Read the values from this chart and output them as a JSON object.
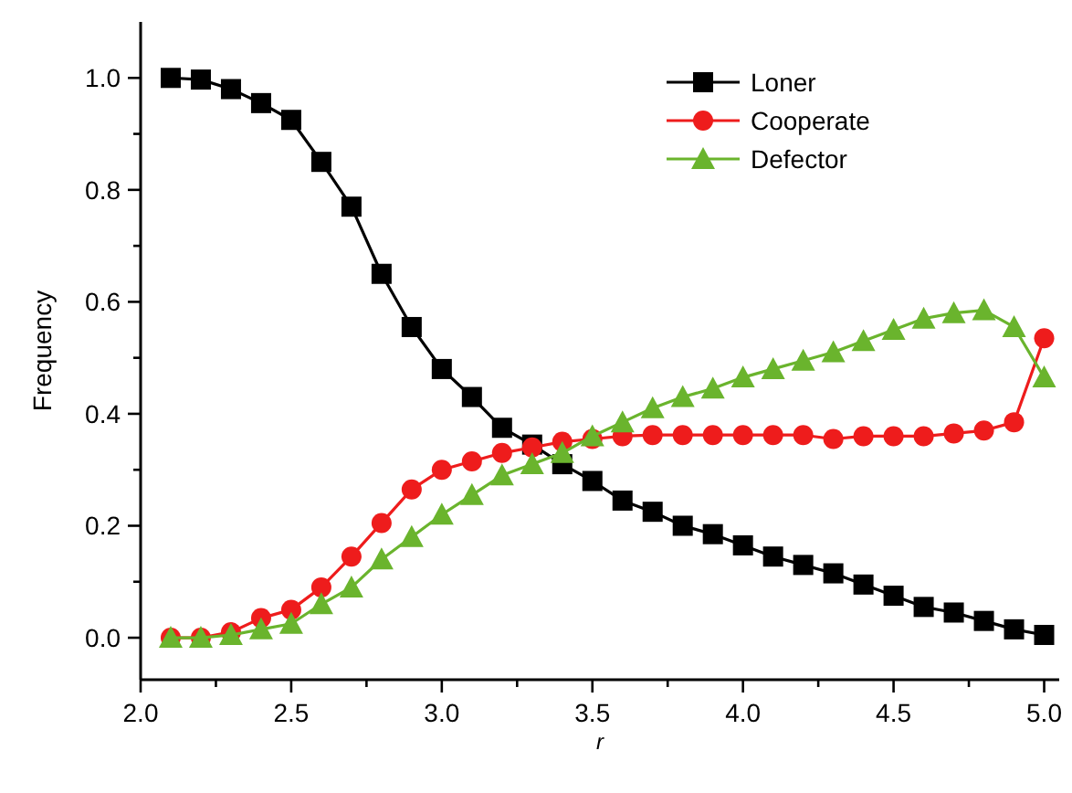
{
  "chart_data": {
    "type": "line",
    "xlabel": "r",
    "ylabel": "Frequency",
    "x": [
      2.1,
      2.2,
      2.3,
      2.4,
      2.5,
      2.6,
      2.7,
      2.8,
      2.9,
      3.0,
      3.1,
      3.2,
      3.3,
      3.4,
      3.5,
      3.6,
      3.7,
      3.8,
      3.9,
      4.0,
      4.1,
      4.2,
      4.3,
      4.4,
      4.5,
      4.6,
      4.7,
      4.8,
      4.9,
      5.0
    ],
    "series": [
      {
        "name": "Loner",
        "color": "#000000",
        "marker": "square",
        "values": [
          1.0,
          0.997,
          0.98,
          0.955,
          0.925,
          0.85,
          0.77,
          0.65,
          0.555,
          0.48,
          0.43,
          0.375,
          0.345,
          0.31,
          0.28,
          0.245,
          0.225,
          0.2,
          0.185,
          0.165,
          0.145,
          0.13,
          0.115,
          0.095,
          0.075,
          0.055,
          0.045,
          0.03,
          0.015,
          0.005
        ]
      },
      {
        "name": "Cooperate",
        "color": "#ee1c1c",
        "marker": "circle",
        "values": [
          0,
          0,
          0.01,
          0.035,
          0.05,
          0.09,
          0.145,
          0.205,
          0.265,
          0.3,
          0.315,
          0.33,
          0.34,
          0.35,
          0.355,
          0.36,
          0.362,
          0.362,
          0.362,
          0.362,
          0.362,
          0.362,
          0.355,
          0.36,
          0.36,
          0.36,
          0.365,
          0.37,
          0.385,
          0.535
        ]
      },
      {
        "name": "Defector",
        "color": "#6ab42d",
        "marker": "triangle",
        "values": [
          0,
          0,
          0.005,
          0.015,
          0.025,
          0.06,
          0.09,
          0.14,
          0.18,
          0.22,
          0.255,
          0.29,
          0.31,
          0.33,
          0.36,
          0.385,
          0.41,
          0.43,
          0.445,
          0.465,
          0.48,
          0.495,
          0.51,
          0.53,
          0.55,
          0.57,
          0.58,
          0.585,
          0.555,
          0.465
        ]
      }
    ],
    "xlim": [
      2.0,
      5.05
    ],
    "ylim": [
      -0.075,
      1.1
    ],
    "xticks": [
      {
        "value": 2.0,
        "label": "2.0"
      },
      {
        "value": 2.25,
        "label": null
      },
      {
        "value": 2.5,
        "label": "2.5"
      },
      {
        "value": 2.75,
        "label": null
      },
      {
        "value": 3.0,
        "label": "3.0"
      },
      {
        "value": 3.25,
        "label": null
      },
      {
        "value": 3.5,
        "label": "3.5"
      },
      {
        "value": 3.75,
        "label": null
      },
      {
        "value": 4.0,
        "label": "4.0"
      },
      {
        "value": 4.25,
        "label": null
      },
      {
        "value": 4.5,
        "label": "4.5"
      },
      {
        "value": 4.75,
        "label": null
      },
      {
        "value": 5.0,
        "label": "5.0"
      }
    ],
    "yticks": [
      {
        "value": 0.0,
        "label": "0.0"
      },
      {
        "value": 0.1,
        "label": null
      },
      {
        "value": 0.2,
        "label": "0.2"
      },
      {
        "value": 0.3,
        "label": null
      },
      {
        "value": 0.4,
        "label": "0.4"
      },
      {
        "value": 0.5,
        "label": null
      },
      {
        "value": 0.6,
        "label": "0.6"
      },
      {
        "value": 0.7,
        "label": null
      },
      {
        "value": 0.8,
        "label": "0.8"
      },
      {
        "value": 0.9,
        "label": null
      },
      {
        "value": 1.0,
        "label": "1.0"
      }
    ],
    "legend": "top right",
    "grid": false,
    "line_style": "solid"
  }
}
